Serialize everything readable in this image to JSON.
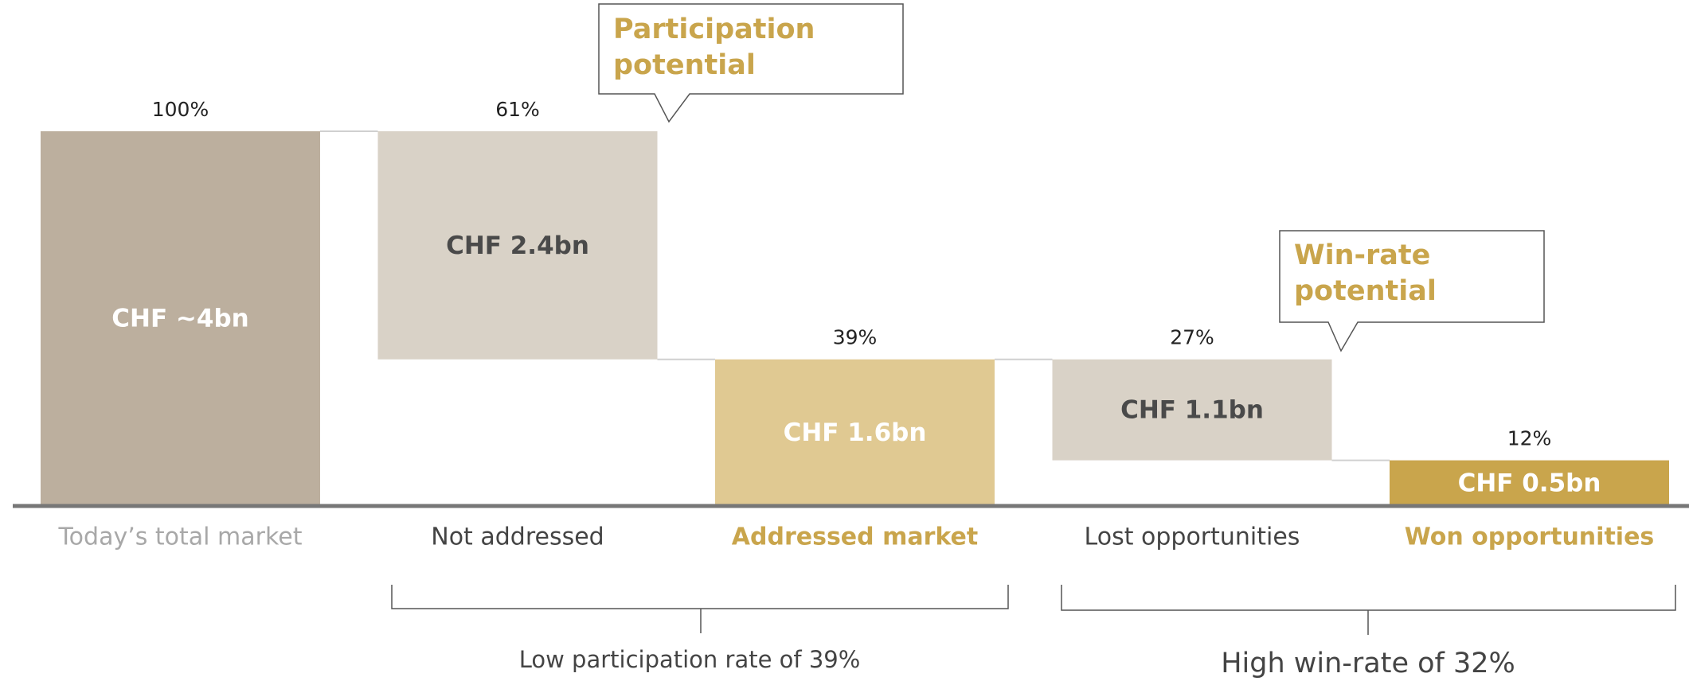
{
  "chart_data": {
    "type": "waterfall",
    "categories": [
      "Today’s total market",
      "Not addressed",
      "Addressed market",
      "Lost opportunities",
      "Won opportunities"
    ],
    "measure": [
      "total",
      "decrease",
      "total",
      "decrease",
      "total"
    ],
    "values": [
      100,
      61,
      39,
      27,
      12
    ],
    "value_labels": [
      "100%",
      "61%",
      "39%",
      "27%",
      "12%"
    ],
    "amount_labels": [
      "CHF ~4bn",
      "CHF 2.4bn",
      "CHF 1.6bn",
      "CHF 1.1bn",
      "CHF 0.5bn"
    ],
    "colors": [
      "#bcaf9e",
      "#d9d2c7",
      "#e0c992",
      "#d9d2c7",
      "#c9a54c"
    ],
    "amount_label_colors": [
      "#ffffff",
      "#4a4a4a",
      "#ffffff",
      "#4a4a4a",
      "#ffffff"
    ],
    "category_colors": [
      "#a8a8a8",
      "#444444",
      "#c9a54c",
      "#444444",
      "#c9a54c"
    ],
    "category_bold": [
      false,
      false,
      true,
      false,
      true
    ],
    "ylim": [
      0,
      100
    ],
    "callouts": [
      {
        "lines": [
          "Participation",
          "potential"
        ]
      },
      {
        "lines": [
          "Win-rate",
          "potential"
        ]
      }
    ],
    "brackets": [
      {
        "label": "Low participation rate of 39%"
      },
      {
        "label": "High win-rate of 32%"
      }
    ]
  }
}
